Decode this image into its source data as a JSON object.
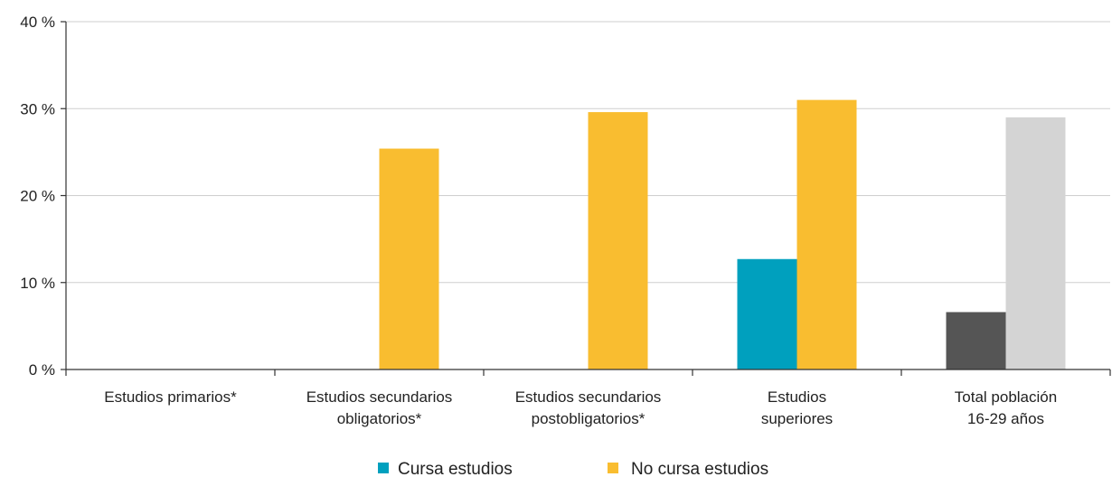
{
  "chart_data": {
    "type": "bar",
    "categories": [
      [
        "Estudios primarios*"
      ],
      [
        "Estudios secundarios",
        "obligatorios*"
      ],
      [
        "Estudios secundarios",
        "postobligatorios*"
      ],
      [
        "Estudios",
        "superiores"
      ],
      [
        "Total población",
        "16-29 años"
      ]
    ],
    "series": [
      {
        "name": "Cursa estudios",
        "color": "#00a0be",
        "values": [
          null,
          null,
          null,
          12.7,
          6.6
        ]
      },
      {
        "name": "No cursa estudios",
        "color": "#f9bd30",
        "values": [
          null,
          25.4,
          29.6,
          31.0,
          29.0
        ]
      }
    ],
    "total_colors": {
      "series_1": "#555555",
      "series_2": "#d4d4d4"
    },
    "ylim": [
      0,
      40
    ],
    "yticks": [
      0,
      10,
      20,
      30,
      40
    ],
    "ytick_labels": [
      "0 %",
      "10 %",
      "20 %",
      "30 %",
      "40 %"
    ],
    "grid": true,
    "legend_position": "bottom",
    "title": "",
    "xlabel": "",
    "ylabel": ""
  }
}
